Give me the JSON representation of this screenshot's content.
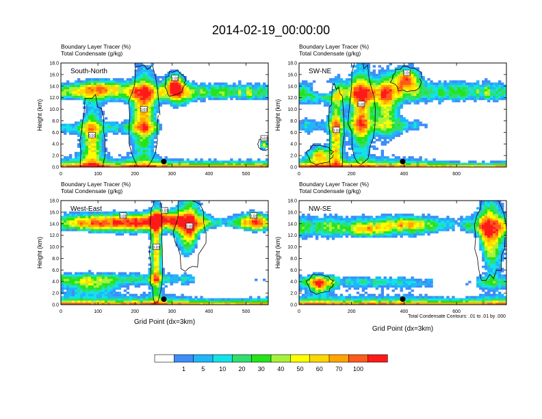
{
  "title": "2014-02-19_00:00:00",
  "footnote": "Total Condensate Contours: .01 to .01 by .000",
  "legend": {
    "labels": [
      "1",
      "5",
      "10",
      "20",
      "30",
      "40",
      "50",
      "60",
      "70",
      "100"
    ],
    "colors": [
      "#ffffff",
      "#3e8ef7",
      "#21b6f8",
      "#13e2e8",
      "#2fe06e",
      "#24e41a",
      "#a6f23a",
      "#ffff00",
      "#ffd700",
      "#ffa500",
      "#ff5a1e",
      "#ff1a1a"
    ]
  },
  "chart_data": [
    {
      "type": "heatmap",
      "title_line1": "Boundary Layer Tracer   (%)",
      "title_line2": "Total Condensate   (g/kg)",
      "label": "South-North",
      "ylabel": "Height (km)",
      "xlabel": "",
      "xlim": [
        0,
        560
      ],
      "ylim": [
        0,
        18
      ],
      "xticks": [
        0,
        100,
        200,
        300,
        400,
        500
      ],
      "yticks": [
        "0.0",
        "2.0",
        "4.0",
        "6.0",
        "8.0",
        "10.0",
        "12.0",
        "14.0",
        "16.0",
        "18.0"
      ],
      "marker_x": 278,
      "contour_labels": [
        "0.01",
        "0.01",
        "0.01",
        "0.01"
      ]
    },
    {
      "type": "heatmap",
      "title_line1": "Boundary Layer Tracer   (%)",
      "title_line2": "Total Condensate   (g/kg)",
      "label": "SW-NE",
      "ylabel": "Height (km)",
      "xlabel": "",
      "xlim": [
        0,
        790
      ],
      "ylim": [
        0,
        18
      ],
      "xticks": [
        0,
        200,
        400,
        600
      ],
      "yticks": [
        "0.0",
        "2.0",
        "4.0",
        "6.0",
        "8.0",
        "10.0",
        "12.0",
        "14.0",
        "16.0",
        "18.0"
      ],
      "marker_x": 395,
      "contour_labels": [
        "0.01",
        "0.01",
        "0.01"
      ]
    },
    {
      "type": "heatmap",
      "title_line1": "Boundary Layer Tracer   (%)",
      "title_line2": "Total Condensate   (g/kg)",
      "label": "West-East",
      "ylabel": "Height (km)",
      "xlabel": "Grid Point (dx=3km)",
      "xlim": [
        0,
        560
      ],
      "ylim": [
        0,
        18
      ],
      "xticks": [
        0,
        100,
        200,
        300,
        400,
        500
      ],
      "yticks": [
        "0.0",
        "2.0",
        "4.0",
        "6.0",
        "8.0",
        "10.0",
        "12.0",
        "14.0",
        "16.0",
        "18.0"
      ],
      "marker_x": 278,
      "contour_labels": [
        "0.01",
        "0.01",
        "0.01",
        "0.01",
        "0.01"
      ]
    },
    {
      "type": "heatmap",
      "title_line1": "Boundary Layer Tracer   (%)",
      "title_line2": "Total Condensate   (g/kg)",
      "label": "NW-SE",
      "ylabel": "Height (km)",
      "xlabel": "Grid Point (dx=3km)",
      "xlim": [
        0,
        790
      ],
      "ylim": [
        0,
        18
      ],
      "xticks": [
        0,
        200,
        400,
        600
      ],
      "yticks": [
        "0.0",
        "2.0",
        "4.0",
        "6.0",
        "8.0",
        "10.0",
        "12.0",
        "14.0",
        "16.0",
        "18.0"
      ],
      "marker_x": 395,
      "contour_labels": []
    }
  ]
}
